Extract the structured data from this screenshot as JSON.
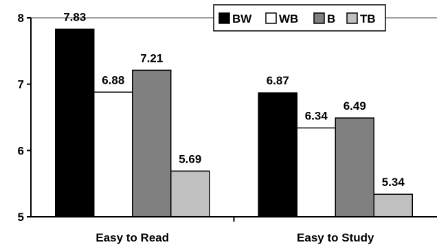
{
  "chart_data": {
    "type": "bar",
    "categories": [
      "Easy to Read",
      "Easy to Study"
    ],
    "series": [
      {
        "name": "BW",
        "values": [
          7.83,
          6.87
        ],
        "color": "#000000"
      },
      {
        "name": "WB",
        "values": [
          6.88,
          6.34
        ],
        "color": "#ffffff"
      },
      {
        "name": "B",
        "values": [
          7.21,
          6.49
        ],
        "color": "#808080"
      },
      {
        "name": "TB",
        "values": [
          5.69,
          5.34
        ],
        "color": "#c0c0c0"
      }
    ],
    "title": "",
    "xlabel": "",
    "ylabel": "",
    "ylim": [
      5,
      8
    ],
    "yticks": [
      "5",
      "6",
      "7",
      "8"
    ],
    "data_labels": [
      [
        "7.83",
        "6.87"
      ],
      [
        "6.88",
        "6.34"
      ],
      [
        "7.21",
        "6.49"
      ],
      [
        "5.69",
        "5.34"
      ]
    ],
    "grid": "top line only",
    "legend": "top-right, horizontal"
  }
}
